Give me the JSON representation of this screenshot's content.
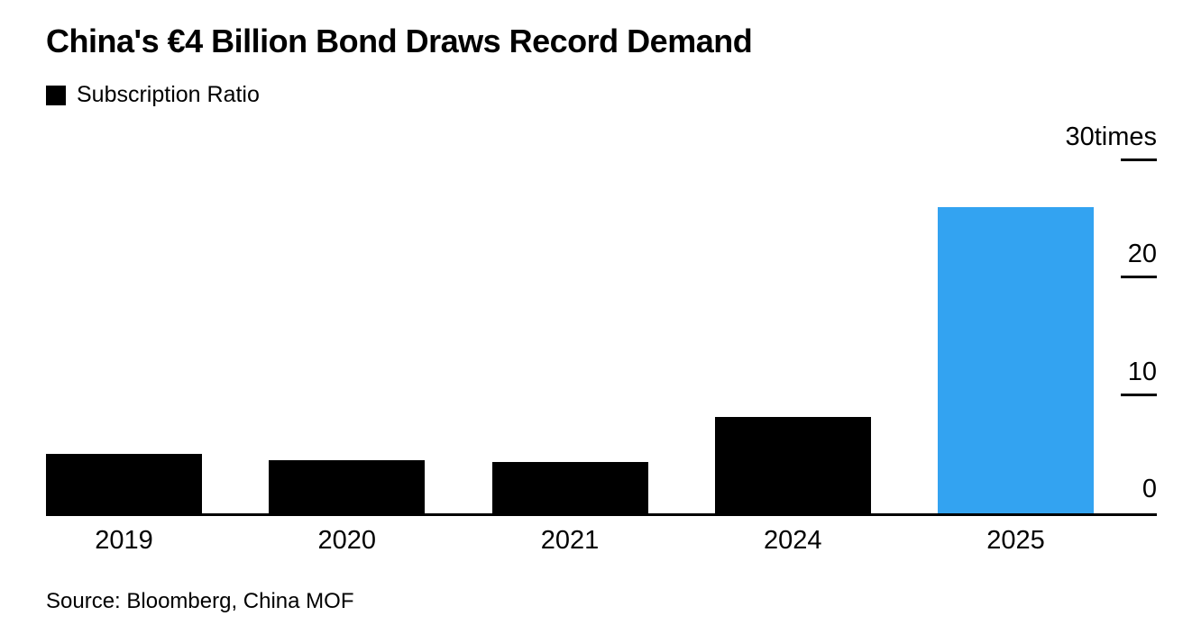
{
  "header": {
    "title": "China's €4 Billion Bond Draws Record Demand"
  },
  "legend": {
    "label": "Subscription Ratio",
    "swatch_color": "#000000"
  },
  "chart_data": {
    "type": "bar",
    "title": "China's €4 Billion Bond Draws Record Demand",
    "series_name": "Subscription Ratio",
    "categories": [
      "2019",
      "2020",
      "2021",
      "2024",
      "2025"
    ],
    "values": [
      5.1,
      4.5,
      4.4,
      8.2,
      26.1
    ],
    "unit": "times",
    "ylabel": "",
    "ylim": [
      0,
      30
    ],
    "yticks": [
      0,
      10,
      20,
      30
    ],
    "ytick_labels": [
      "0",
      "10",
      "20",
      "30times"
    ],
    "axis_side": "right",
    "grid": false,
    "legend_position": "top-left",
    "default_color": "#000000",
    "highlight_color": "#33A3F1",
    "bar_colors": [
      "#000000",
      "#000000",
      "#000000",
      "#000000",
      "#33A3F1"
    ]
  },
  "footer": {
    "source": "Source: Bloomberg, China MOF"
  }
}
